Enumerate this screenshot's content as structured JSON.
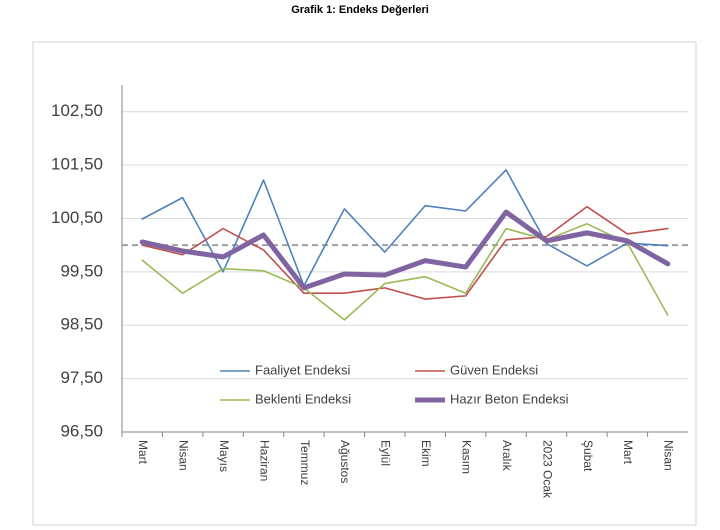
{
  "chart_data": {
    "type": "line",
    "title": "Grafik 1: Endeks Değerleri",
    "categories": [
      "Mart",
      "Nisan",
      "Mayıs",
      "Haziran",
      "Temmuz",
      "Ağustos",
      "Eylül",
      "Ekim",
      "Kasım",
      "Aralık",
      "2023 Ocak",
      "Şubat",
      "Mart",
      "Nisan"
    ],
    "series": [
      {
        "name": "Faaliyet Endeksi",
        "color": "#4f81bd",
        "line_width": 1.6,
        "values": [
          100.49,
          100.89,
          99.5,
          101.22,
          99.24,
          100.68,
          99.87,
          100.74,
          100.64,
          101.41,
          100.03,
          99.61,
          100.04,
          99.99
        ]
      },
      {
        "name": "Güven Endeksi",
        "color": "#c0504d",
        "line_width": 1.6,
        "values": [
          100.0,
          99.82,
          100.31,
          99.91,
          99.1,
          99.1,
          99.2,
          98.99,
          99.05,
          100.1,
          100.16,
          100.72,
          100.21,
          100.31
        ]
      },
      {
        "name": "Beklenti Endeksi",
        "color": "#9bbb59",
        "line_width": 1.6,
        "values": [
          99.72,
          99.1,
          99.56,
          99.52,
          99.2,
          98.6,
          99.28,
          99.41,
          99.1,
          100.31,
          100.1,
          100.4,
          100.04,
          98.69
        ]
      },
      {
        "name": "Hazır Beton Endeksi",
        "color": "#8064a2",
        "line_width": 5,
        "values": [
          100.06,
          99.89,
          99.78,
          100.19,
          99.2,
          99.46,
          99.44,
          99.71,
          99.59,
          100.62,
          100.08,
          100.23,
          100.08,
          99.65
        ]
      }
    ],
    "ylim": [
      96.5,
      103.0
    ],
    "yticks": [
      {
        "value": 96.5,
        "label": "96,50"
      },
      {
        "value": 97.5,
        "label": "97,50"
      },
      {
        "value": 98.5,
        "label": "98,50"
      },
      {
        "value": 99.5,
        "label": "99,50"
      },
      {
        "value": 100.5,
        "label": "100,50"
      },
      {
        "value": 101.5,
        "label": "101,50"
      },
      {
        "value": 102.5,
        "label": "102,50"
      }
    ],
    "reference_line": 100,
    "grid": true,
    "legend": "inside-bottom"
  }
}
